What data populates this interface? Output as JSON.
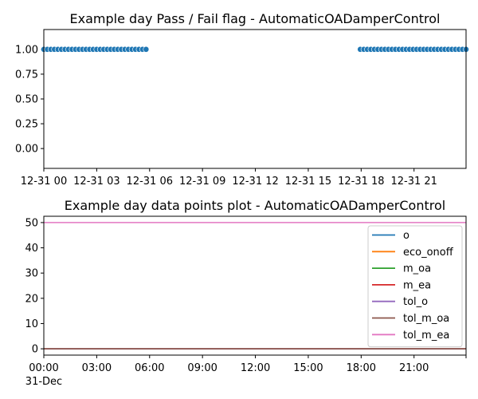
{
  "chart_data": [
    {
      "type": "scatter",
      "title": "Example day Pass / Fail flag - AutomaticOADamperControl",
      "x_unit": "hours on 31-Dec",
      "xlim": [
        0,
        23.95
      ],
      "ylim": [
        -0.2,
        1.2
      ],
      "x_ticks": [
        0,
        3,
        6,
        9,
        12,
        15,
        18,
        21
      ],
      "x_tick_labels": [
        "12-31 00",
        "12-31 03",
        "12-31 06",
        "12-31 09",
        "12-31 12",
        "12-31 15",
        "12-31 18",
        "12-31 21"
      ],
      "y_ticks": [
        0,
        0.25,
        0.5,
        0.75,
        1.0
      ],
      "y_tick_labels": [
        "0.00",
        "0.25",
        "0.50",
        "0.75",
        "1.00"
      ],
      "grid": false,
      "marker_color": "#1f77b4",
      "series": [
        {
          "segments": [
            {
              "x_start": 0,
              "x_end": 5.95,
              "step": 0.2,
              "y": 1.0
            },
            {
              "x_start": 17.95,
              "x_end": 23.95,
              "step": 0.2,
              "y": 1.0
            }
          ]
        }
      ]
    },
    {
      "type": "line",
      "title": "Example day data points plot - AutomaticOADamperControl",
      "x_unit": "hours on 31-Dec",
      "xlim": [
        0,
        23.95
      ],
      "ylim": [
        -2.5,
        52.5
      ],
      "x_ticks": [
        0,
        3,
        6,
        9,
        12,
        15,
        18,
        21
      ],
      "x_tick_labels": [
        "00:00",
        "03:00",
        "06:00",
        "09:00",
        "12:00",
        "15:00",
        "18:00",
        "21:00"
      ],
      "x_sub_label": "31-Dec",
      "y_ticks": [
        0,
        10,
        20,
        30,
        40,
        50
      ],
      "y_tick_labels": [
        "0",
        "10",
        "20",
        "30",
        "40",
        "50"
      ],
      "grid": false,
      "legend_position": "upper-right",
      "series": [
        {
          "name": "o",
          "color": "#1f77b4",
          "y": 0
        },
        {
          "name": "eco_onoff",
          "color": "#ff7f0e",
          "y": 0
        },
        {
          "name": "m_oa",
          "color": "#2ca02c",
          "y": 0
        },
        {
          "name": "m_ea",
          "color": "#d62728",
          "y": 0
        },
        {
          "name": "tol_o",
          "color": "#9467bd",
          "y": 0
        },
        {
          "name": "tol_m_oa",
          "color": "#8c564b",
          "y": 0
        },
        {
          "name": "tol_m_ea",
          "color": "#e377c2",
          "y": 50
        }
      ]
    }
  ]
}
